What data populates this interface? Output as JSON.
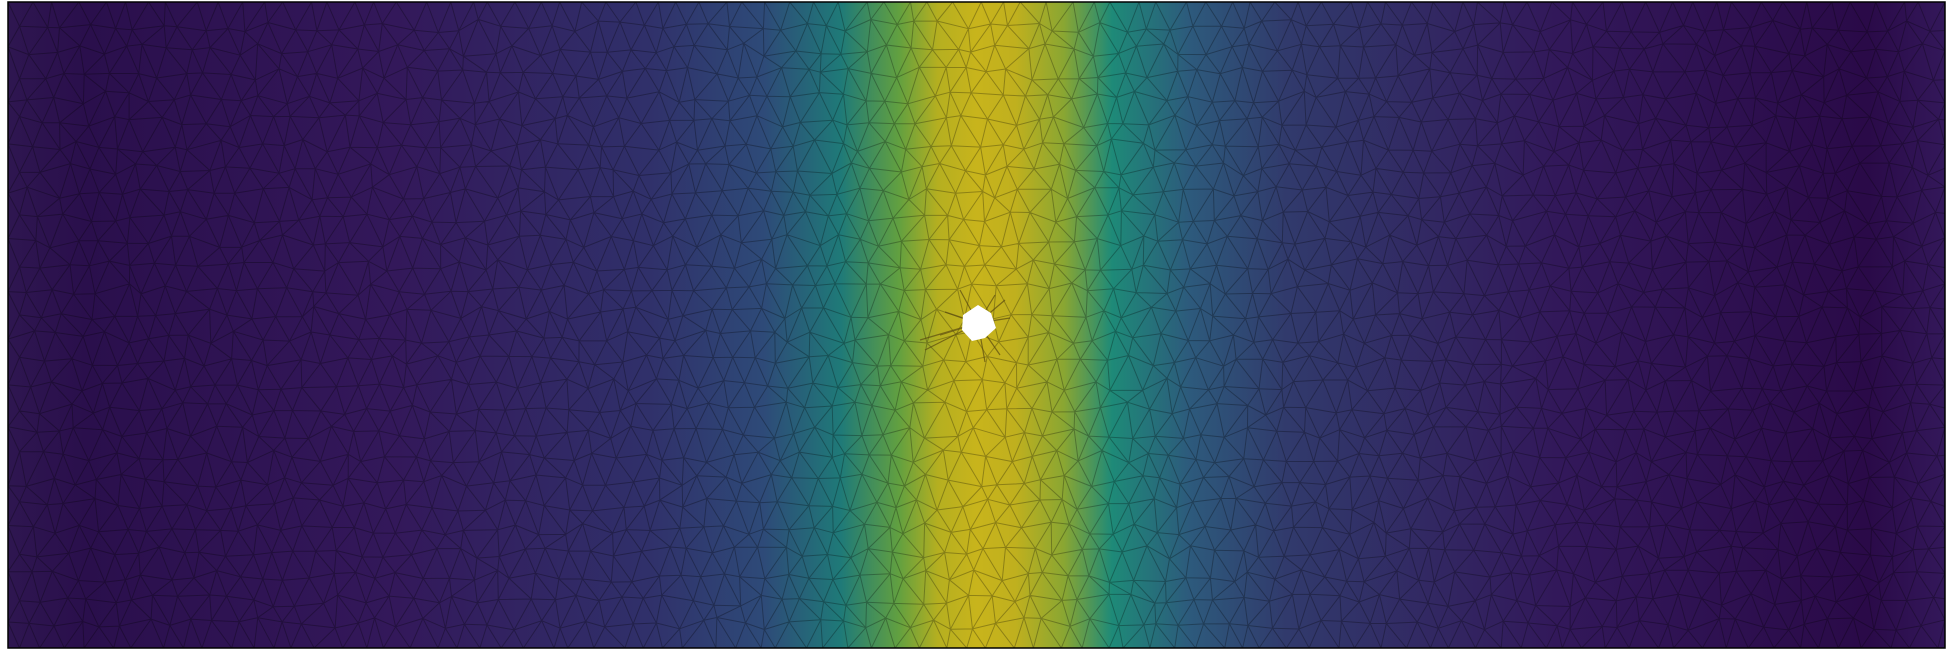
{
  "figure": {
    "kind": "finite-element-mesh-field-plot",
    "colormap": "viridis",
    "colormap_stops": [
      "#440154",
      "#3b528b",
      "#21918c",
      "#5ec962",
      "#fde725"
    ],
    "field_peak_color": "#c8b41c",
    "field_background_color": "#2d1650",
    "mesh_line_color": "#000000",
    "hole_color": "#ffffff",
    "border_color": "#000000",
    "icons": [
      "mesh-triangle",
      "central-hole"
    ]
  }
}
